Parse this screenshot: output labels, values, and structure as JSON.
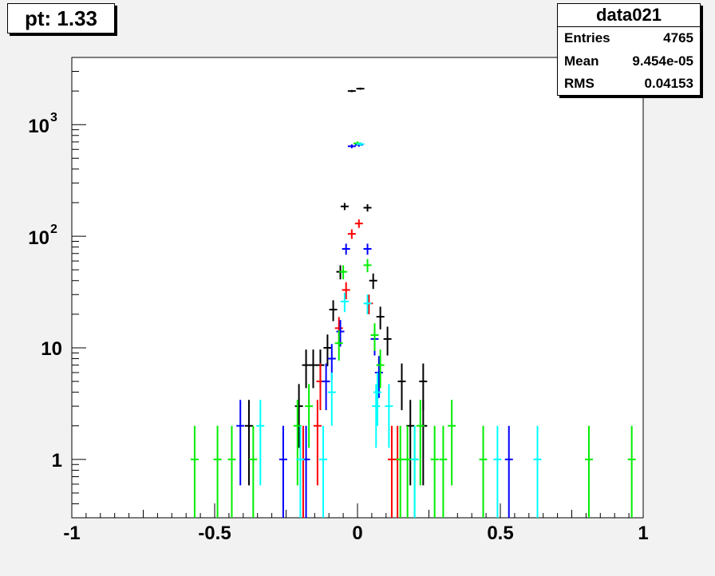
{
  "title_box": {
    "label": "pt: 1.33"
  },
  "stats": {
    "name": "data021",
    "rows": [
      {
        "key": "Entries",
        "value": "4765"
      },
      {
        "key": "Mean",
        "value": "9.454e-05"
      },
      {
        "key": "RMS",
        "value": "0.04153"
      }
    ]
  },
  "chart_data": {
    "type": "scatter",
    "title": "",
    "xlabel": "",
    "ylabel": "",
    "xlim": [
      -1,
      1
    ],
    "ylim": [
      0.3,
      4000
    ],
    "y_scale": "log",
    "grid": false,
    "x_ticks": [
      "-1",
      "-0.5",
      "0",
      "0.5",
      "1"
    ],
    "y_ticks": [
      {
        "value": 1,
        "label": "1"
      },
      {
        "value": 10,
        "label": "10"
      },
      {
        "value": 100,
        "label": "10",
        "exp": "2"
      },
      {
        "value": 1000,
        "label": "10",
        "exp": "3"
      }
    ],
    "series": [
      {
        "color": "#000000",
        "points": [
          [
            -0.02,
            2000
          ],
          [
            0.01,
            2100
          ],
          [
            -0.045,
            185
          ],
          [
            0.035,
            180
          ],
          [
            -0.06,
            48
          ],
          [
            0.055,
            40
          ],
          [
            -0.085,
            22
          ],
          [
            0.08,
            19
          ],
          [
            -0.105,
            10
          ],
          [
            0.105,
            12
          ],
          [
            -0.13,
            7
          ],
          [
            -0.155,
            7
          ],
          [
            -0.18,
            7
          ],
          [
            -0.205,
            3
          ],
          [
            0.155,
            5
          ],
          [
            0.23,
            5
          ],
          [
            -0.38,
            2
          ],
          [
            0.185,
            2
          ],
          [
            0.23,
            2
          ]
        ]
      },
      {
        "color": "#ff0000",
        "points": [
          [
            -0.02,
            105
          ],
          [
            0.005,
            130
          ],
          [
            -0.04,
            33
          ],
          [
            0.04,
            25
          ],
          [
            -0.065,
            15
          ],
          [
            -0.13,
            5
          ],
          [
            -0.14,
            2
          ],
          [
            0.12,
            1
          ],
          [
            0.14,
            1
          ],
          [
            -0.19,
            1
          ]
        ]
      },
      {
        "color": "#0000ff",
        "points": [
          [
            -0.02,
            640
          ],
          [
            0.005,
            660
          ],
          [
            -0.04,
            77
          ],
          [
            0.035,
            77
          ],
          [
            -0.06,
            14
          ],
          [
            0.06,
            12
          ],
          [
            -0.09,
            8
          ],
          [
            0.075,
            6
          ],
          [
            -0.11,
            5
          ],
          [
            -0.41,
            2
          ],
          [
            -0.26,
            1
          ],
          [
            -0.18,
            1
          ],
          [
            0.53,
            1
          ]
        ]
      },
      {
        "color": "#00ee00",
        "points": [
          [
            0.0,
            680
          ],
          [
            -0.05,
            48
          ],
          [
            0.035,
            55
          ],
          [
            -0.065,
            11
          ],
          [
            0.06,
            13
          ],
          [
            0.08,
            7
          ],
          [
            -0.57,
            1
          ],
          [
            -0.49,
            1
          ],
          [
            -0.44,
            1
          ],
          [
            -0.365,
            1
          ],
          [
            -0.21,
            2
          ],
          [
            -0.17,
            3
          ],
          [
            0.15,
            1
          ],
          [
            0.175,
            1
          ],
          [
            0.2,
            1
          ],
          [
            0.22,
            2
          ],
          [
            0.27,
            1
          ],
          [
            0.3,
            1
          ],
          [
            0.33,
            2
          ],
          [
            0.44,
            1
          ],
          [
            0.81,
            1
          ],
          [
            0.96,
            1
          ]
        ]
      },
      {
        "color": "#00ffff",
        "points": [
          [
            0.01,
            670
          ],
          [
            -0.045,
            26
          ],
          [
            0.035,
            25
          ],
          [
            -0.09,
            4
          ],
          [
            0.07,
            4
          ],
          [
            -0.34,
            2
          ],
          [
            -0.2,
            1
          ],
          [
            -0.12,
            1
          ],
          [
            0.065,
            3
          ],
          [
            0.11,
            3
          ],
          [
            0.2,
            1
          ],
          [
            0.49,
            1
          ],
          [
            0.63,
            1
          ]
        ]
      }
    ]
  }
}
